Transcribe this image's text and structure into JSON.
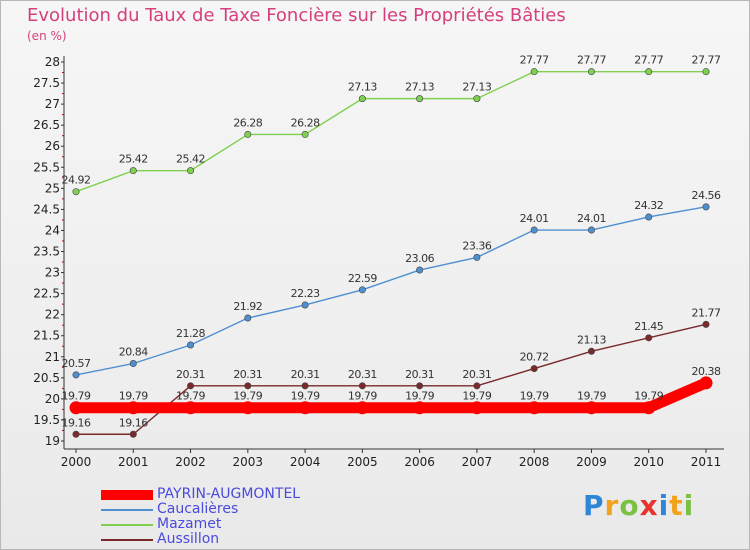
{
  "chart_data": {
    "type": "line",
    "title": "Evolution du Taux de Taxe Foncière sur les Propriétés Bâties",
    "ylabel": "(en %)",
    "xlabel": "",
    "x": [
      "2000",
      "2001",
      "2002",
      "2003",
      "2004",
      "2005",
      "2006",
      "2007",
      "2008",
      "2009",
      "2010",
      "2011"
    ],
    "ylim": [
      19,
      28
    ],
    "yticks": [
      "19",
      "19.5",
      "20",
      "20.5",
      "21",
      "21.5",
      "22",
      "22.5",
      "23",
      "23.5",
      "24",
      "24.5",
      "25",
      "25.5",
      "26",
      "26.5",
      "27",
      "27.5",
      "28"
    ],
    "grid": false,
    "legend_position": "bottom-left",
    "series": [
      {
        "name": "PAYRIN-AUGMONTEL",
        "color": "#ff0000",
        "values": [
          19.79,
          19.79,
          19.79,
          19.79,
          19.79,
          19.79,
          19.79,
          19.79,
          19.79,
          19.79,
          19.79,
          20.38
        ],
        "labels": [
          "19.79",
          "19.79",
          "19.79",
          "19.79",
          "19.79",
          "19.79",
          "19.79",
          "19.79",
          "19.79",
          "19.79",
          "19.79",
          "20.38"
        ]
      },
      {
        "name": "Caucalières",
        "color": "#4f8fd0",
        "values": [
          20.57,
          20.84,
          21.28,
          21.92,
          22.23,
          22.59,
          23.06,
          23.36,
          24.01,
          24.01,
          24.32,
          24.56
        ],
        "labels": [
          "20.57",
          "20.84",
          "21.28",
          "21.92",
          "22.23",
          "22.59",
          "23.06",
          "23.36",
          "24.01",
          "24.01",
          "24.32",
          "24.56"
        ]
      },
      {
        "name": "Mazamet",
        "color": "#7fd050",
        "values": [
          24.92,
          25.42,
          25.42,
          26.28,
          26.28,
          27.13,
          27.13,
          27.13,
          27.77,
          27.77,
          27.77,
          27.77
        ],
        "labels": [
          "24.92",
          "25.42",
          "25.42",
          "26.28",
          "26.28",
          "27.13",
          "27.13",
          "27.13",
          "27.77",
          "27.77",
          "27.77",
          "27.77"
        ]
      },
      {
        "name": "Aussillon",
        "color": "#7a2a2a",
        "values": [
          19.16,
          19.16,
          20.31,
          20.31,
          20.31,
          20.31,
          20.31,
          20.31,
          20.72,
          21.13,
          21.45,
          21.77
        ],
        "labels": [
          "19.16",
          "19.16",
          "20.31",
          "20.31",
          "20.31",
          "20.31",
          "20.31",
          "20.31",
          "20.72",
          "21.13",
          "21.45",
          "21.77"
        ]
      }
    ]
  },
  "logo": {
    "text": "Proxiti",
    "letters": [
      {
        "ch": "P",
        "color": "#2f86d6"
      },
      {
        "ch": "r",
        "color": "#f3a21b"
      },
      {
        "ch": "o",
        "color": "#7ac143"
      },
      {
        "ch": "x",
        "color": "#e8342d"
      },
      {
        "ch": "i",
        "color": "#2f86d6"
      },
      {
        "ch": "t",
        "color": "#f3a21b"
      },
      {
        "ch": "i",
        "color": "#7ac143"
      }
    ]
  }
}
